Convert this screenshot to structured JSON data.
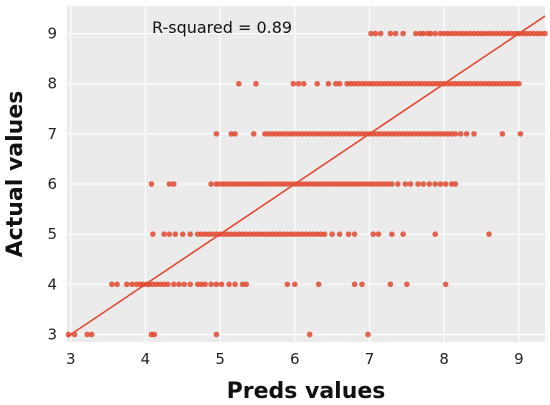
{
  "chart_data": {
    "type": "scatter",
    "title": "",
    "xlabel": "Preds values",
    "ylabel": "Actual values",
    "annotation": "R-squared = 0.89",
    "xlim": [
      2.95,
      9.35
    ],
    "ylim": [
      2.85,
      9.55
    ],
    "xticks": [
      3,
      4,
      5,
      6,
      7,
      8,
      9
    ],
    "yticks": [
      3,
      4,
      5,
      6,
      7,
      8,
      9
    ],
    "grid": true,
    "point_color": "#e2482f",
    "line_color": "#e2482f",
    "background_color": "#ebebeb",
    "grid_color": "#ffffff",
    "reference_line": {
      "x": [
        2.95,
        9.35
      ],
      "y": [
        2.95,
        9.35
      ]
    },
    "series": [
      {
        "points": [
          [
            2.97,
            3
          ],
          [
            3.05,
            3
          ],
          [
            3.22,
            3
          ],
          [
            3.28,
            3
          ],
          [
            4.08,
            3
          ],
          [
            4.12,
            3
          ],
          [
            4.95,
            3
          ],
          [
            6.2,
            3
          ],
          [
            6.98,
            3
          ],
          [
            3.55,
            4
          ],
          [
            3.62,
            4
          ],
          [
            3.75,
            4
          ],
          [
            3.82,
            4
          ],
          [
            3.88,
            4
          ],
          [
            3.93,
            4
          ],
          [
            3.97,
            4
          ],
          [
            4.02,
            4
          ],
          [
            4.05,
            4
          ],
          [
            4.1,
            4
          ],
          [
            4.15,
            4
          ],
          [
            4.2,
            4
          ],
          [
            4.25,
            4
          ],
          [
            4.3,
            4
          ],
          [
            4.38,
            4
          ],
          [
            4.45,
            4
          ],
          [
            4.52,
            4
          ],
          [
            4.6,
            4
          ],
          [
            4.7,
            4
          ],
          [
            4.75,
            4
          ],
          [
            4.8,
            4
          ],
          [
            4.88,
            4
          ],
          [
            4.95,
            4
          ],
          [
            5.02,
            4
          ],
          [
            5.12,
            4
          ],
          [
            5.2,
            4
          ],
          [
            5.3,
            4
          ],
          [
            5.35,
            4
          ],
          [
            5.9,
            4
          ],
          [
            6.0,
            4
          ],
          [
            6.32,
            4
          ],
          [
            6.8,
            4
          ],
          [
            6.9,
            4
          ],
          [
            7.28,
            4
          ],
          [
            7.5,
            4
          ],
          [
            8.02,
            4
          ],
          [
            4.1,
            5
          ],
          [
            4.25,
            5
          ],
          [
            4.32,
            5
          ],
          [
            4.4,
            5
          ],
          [
            4.5,
            5
          ],
          [
            4.6,
            5
          ],
          [
            4.7,
            5
          ],
          [
            4.75,
            5
          ],
          [
            4.8,
            5
          ],
          [
            4.85,
            5
          ],
          [
            4.9,
            5
          ],
          [
            4.95,
            5
          ],
          [
            5.0,
            5
          ],
          [
            5.05,
            5
          ],
          [
            5.1,
            5
          ],
          [
            5.15,
            5
          ],
          [
            5.2,
            5
          ],
          [
            5.25,
            5
          ],
          [
            5.3,
            5
          ],
          [
            5.35,
            5
          ],
          [
            5.4,
            5
          ],
          [
            5.45,
            5
          ],
          [
            5.5,
            5
          ],
          [
            5.55,
            5
          ],
          [
            5.6,
            5
          ],
          [
            5.65,
            5
          ],
          [
            5.7,
            5
          ],
          [
            5.75,
            5
          ],
          [
            5.8,
            5
          ],
          [
            5.85,
            5
          ],
          [
            5.9,
            5
          ],
          [
            5.95,
            5
          ],
          [
            6.0,
            5
          ],
          [
            6.05,
            5
          ],
          [
            6.1,
            5
          ],
          [
            6.15,
            5
          ],
          [
            6.2,
            5
          ],
          [
            6.25,
            5
          ],
          [
            6.3,
            5
          ],
          [
            6.35,
            5
          ],
          [
            6.4,
            5
          ],
          [
            6.5,
            5
          ],
          [
            6.6,
            5
          ],
          [
            6.72,
            5
          ],
          [
            6.8,
            5
          ],
          [
            7.05,
            5
          ],
          [
            7.12,
            5
          ],
          [
            7.3,
            5
          ],
          [
            7.45,
            5
          ],
          [
            7.88,
            5
          ],
          [
            8.6,
            5
          ],
          [
            4.08,
            6
          ],
          [
            4.32,
            6
          ],
          [
            4.38,
            6
          ],
          [
            4.88,
            6
          ],
          [
            4.95,
            6
          ],
          [
            5.0,
            6
          ],
          [
            5.05,
            6
          ],
          [
            5.1,
            6
          ],
          [
            5.15,
            6
          ],
          [
            5.2,
            6
          ],
          [
            5.25,
            6
          ],
          [
            5.3,
            6
          ],
          [
            5.35,
            6
          ],
          [
            5.4,
            6
          ],
          [
            5.45,
            6
          ],
          [
            5.5,
            6
          ],
          [
            5.55,
            6
          ],
          [
            5.6,
            6
          ],
          [
            5.65,
            6
          ],
          [
            5.7,
            6
          ],
          [
            5.75,
            6
          ],
          [
            5.8,
            6
          ],
          [
            5.85,
            6
          ],
          [
            5.9,
            6
          ],
          [
            5.95,
            6
          ],
          [
            6.0,
            6
          ],
          [
            6.05,
            6
          ],
          [
            6.1,
            6
          ],
          [
            6.15,
            6
          ],
          [
            6.2,
            6
          ],
          [
            6.25,
            6
          ],
          [
            6.3,
            6
          ],
          [
            6.35,
            6
          ],
          [
            6.4,
            6
          ],
          [
            6.45,
            6
          ],
          [
            6.5,
            6
          ],
          [
            6.55,
            6
          ],
          [
            6.6,
            6
          ],
          [
            6.65,
            6
          ],
          [
            6.7,
            6
          ],
          [
            6.75,
            6
          ],
          [
            6.8,
            6
          ],
          [
            6.85,
            6
          ],
          [
            6.9,
            6
          ],
          [
            6.95,
            6
          ],
          [
            7.0,
            6
          ],
          [
            7.05,
            6
          ],
          [
            7.1,
            6
          ],
          [
            7.15,
            6
          ],
          [
            7.2,
            6
          ],
          [
            7.25,
            6
          ],
          [
            7.3,
            6
          ],
          [
            7.38,
            6
          ],
          [
            7.48,
            6
          ],
          [
            7.55,
            6
          ],
          [
            7.65,
            6
          ],
          [
            7.72,
            6
          ],
          [
            7.8,
            6
          ],
          [
            7.88,
            6
          ],
          [
            7.95,
            6
          ],
          [
            8.02,
            6
          ],
          [
            8.1,
            6
          ],
          [
            8.15,
            6
          ],
          [
            4.95,
            7
          ],
          [
            5.15,
            7
          ],
          [
            5.2,
            7
          ],
          [
            5.45,
            7
          ],
          [
            5.6,
            7
          ],
          [
            5.65,
            7
          ],
          [
            5.7,
            7
          ],
          [
            5.75,
            7
          ],
          [
            5.8,
            7
          ],
          [
            5.85,
            7
          ],
          [
            5.9,
            7
          ],
          [
            5.95,
            7
          ],
          [
            6.0,
            7
          ],
          [
            6.05,
            7
          ],
          [
            6.1,
            7
          ],
          [
            6.15,
            7
          ],
          [
            6.2,
            7
          ],
          [
            6.25,
            7
          ],
          [
            6.3,
            7
          ],
          [
            6.35,
            7
          ],
          [
            6.4,
            7
          ],
          [
            6.45,
            7
          ],
          [
            6.5,
            7
          ],
          [
            6.55,
            7
          ],
          [
            6.6,
            7
          ],
          [
            6.65,
            7
          ],
          [
            6.7,
            7
          ],
          [
            6.75,
            7
          ],
          [
            6.8,
            7
          ],
          [
            6.85,
            7
          ],
          [
            6.9,
            7
          ],
          [
            6.95,
            7
          ],
          [
            7.0,
            7
          ],
          [
            7.05,
            7
          ],
          [
            7.1,
            7
          ],
          [
            7.15,
            7
          ],
          [
            7.2,
            7
          ],
          [
            7.25,
            7
          ],
          [
            7.3,
            7
          ],
          [
            7.35,
            7
          ],
          [
            7.4,
            7
          ],
          [
            7.45,
            7
          ],
          [
            7.5,
            7
          ],
          [
            7.55,
            7
          ],
          [
            7.6,
            7
          ],
          [
            7.65,
            7
          ],
          [
            7.7,
            7
          ],
          [
            7.75,
            7
          ],
          [
            7.8,
            7
          ],
          [
            7.85,
            7
          ],
          [
            7.9,
            7
          ],
          [
            7.95,
            7
          ],
          [
            8.0,
            7
          ],
          [
            8.05,
            7
          ],
          [
            8.1,
            7
          ],
          [
            8.15,
            7
          ],
          [
            8.22,
            7
          ],
          [
            8.3,
            7
          ],
          [
            8.4,
            7
          ],
          [
            8.78,
            7
          ],
          [
            9.02,
            7
          ],
          [
            5.25,
            8
          ],
          [
            5.48,
            8
          ],
          [
            5.98,
            8
          ],
          [
            6.05,
            8
          ],
          [
            6.12,
            8
          ],
          [
            6.3,
            8
          ],
          [
            6.45,
            8
          ],
          [
            6.55,
            8
          ],
          [
            6.6,
            8
          ],
          [
            6.7,
            8
          ],
          [
            6.75,
            8
          ],
          [
            6.8,
            8
          ],
          [
            6.85,
            8
          ],
          [
            6.9,
            8
          ],
          [
            6.95,
            8
          ],
          [
            7.0,
            8
          ],
          [
            7.05,
            8
          ],
          [
            7.1,
            8
          ],
          [
            7.15,
            8
          ],
          [
            7.2,
            8
          ],
          [
            7.25,
            8
          ],
          [
            7.3,
            8
          ],
          [
            7.35,
            8
          ],
          [
            7.4,
            8
          ],
          [
            7.45,
            8
          ],
          [
            7.5,
            8
          ],
          [
            7.55,
            8
          ],
          [
            7.6,
            8
          ],
          [
            7.65,
            8
          ],
          [
            7.7,
            8
          ],
          [
            7.75,
            8
          ],
          [
            7.8,
            8
          ],
          [
            7.85,
            8
          ],
          [
            7.9,
            8
          ],
          [
            7.95,
            8
          ],
          [
            8.0,
            8
          ],
          [
            8.05,
            8
          ],
          [
            8.1,
            8
          ],
          [
            8.15,
            8
          ],
          [
            8.2,
            8
          ],
          [
            8.25,
            8
          ],
          [
            8.3,
            8
          ],
          [
            8.35,
            8
          ],
          [
            8.4,
            8
          ],
          [
            8.45,
            8
          ],
          [
            8.5,
            8
          ],
          [
            8.55,
            8
          ],
          [
            8.6,
            8
          ],
          [
            8.65,
            8
          ],
          [
            8.7,
            8
          ],
          [
            8.75,
            8
          ],
          [
            8.8,
            8
          ],
          [
            8.85,
            8
          ],
          [
            8.9,
            8
          ],
          [
            8.95,
            8
          ],
          [
            9.0,
            8
          ],
          [
            7.02,
            9
          ],
          [
            7.08,
            9
          ],
          [
            7.15,
            9
          ],
          [
            7.28,
            9
          ],
          [
            7.35,
            9
          ],
          [
            7.45,
            9
          ],
          [
            7.62,
            9
          ],
          [
            7.68,
            9
          ],
          [
            7.72,
            9
          ],
          [
            7.78,
            9
          ],
          [
            7.82,
            9
          ],
          [
            7.88,
            9
          ],
          [
            7.95,
            9
          ],
          [
            8.0,
            9
          ],
          [
            8.05,
            9
          ],
          [
            8.1,
            9
          ],
          [
            8.15,
            9
          ],
          [
            8.2,
            9
          ],
          [
            8.25,
            9
          ],
          [
            8.3,
            9
          ],
          [
            8.35,
            9
          ],
          [
            8.4,
            9
          ],
          [
            8.45,
            9
          ],
          [
            8.5,
            9
          ],
          [
            8.55,
            9
          ],
          [
            8.6,
            9
          ],
          [
            8.65,
            9
          ],
          [
            8.7,
            9
          ],
          [
            8.75,
            9
          ],
          [
            8.8,
            9
          ],
          [
            8.85,
            9
          ],
          [
            8.9,
            9
          ],
          [
            8.95,
            9
          ],
          [
            9.0,
            9
          ],
          [
            9.05,
            9
          ],
          [
            9.1,
            9
          ],
          [
            9.15,
            9
          ],
          [
            9.2,
            9
          ],
          [
            9.25,
            9
          ],
          [
            9.3,
            9
          ],
          [
            9.35,
            9
          ]
        ]
      }
    ]
  }
}
